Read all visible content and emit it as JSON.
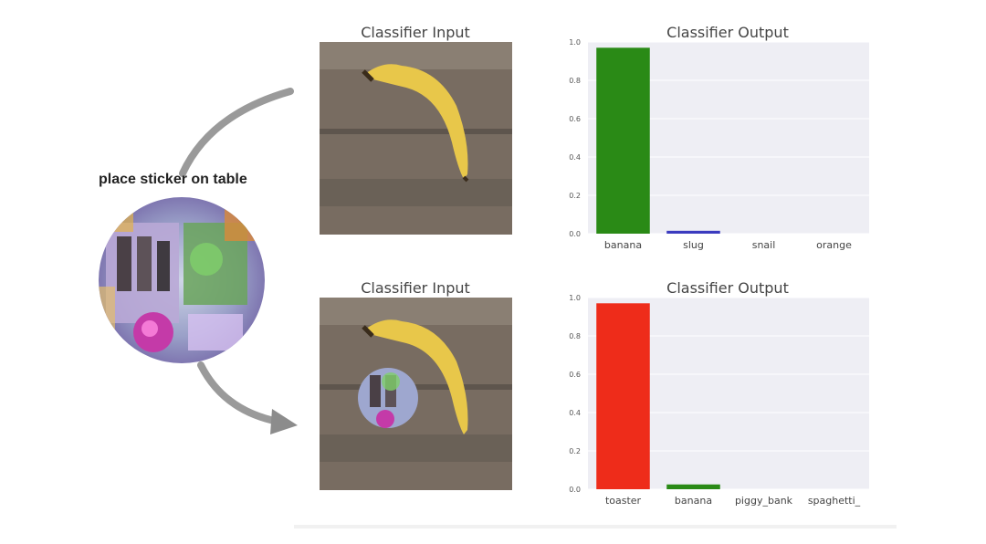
{
  "caption": "place sticker on table",
  "panels": [
    {
      "input_title": "Classifier Input",
      "output_title": "Classifier Output"
    },
    {
      "input_title": "Classifier Input",
      "output_title": "Classifier Output"
    }
  ],
  "chart_data": [
    {
      "type": "bar",
      "title": "Classifier Output",
      "categories": [
        "banana",
        "slug",
        "snail",
        "orange"
      ],
      "values": [
        0.97,
        0.015,
        0.0,
        0.0
      ],
      "colors": [
        "#2a8a16",
        "#3b3bbf",
        "#3b3bbf",
        "#3b3bbf"
      ],
      "ylim": [
        0,
        1.0
      ],
      "yticks": [
        "0.0",
        "0.2",
        "0.4",
        "0.6",
        "0.8",
        "1.0"
      ],
      "grid": true,
      "xlabel": "",
      "ylabel": ""
    },
    {
      "type": "bar",
      "title": "Classifier Output",
      "categories": [
        "toaster",
        "banana",
        "piggy_bank",
        "spaghetti_"
      ],
      "values": [
        0.97,
        0.025,
        0.0,
        0.0
      ],
      "colors": [
        "#ee2c1a",
        "#2a8a16",
        "#2a8a16",
        "#2a8a16"
      ],
      "ylim": [
        0,
        1.0
      ],
      "yticks": [
        "0.0",
        "0.2",
        "0.4",
        "0.6",
        "0.8",
        "1.0"
      ],
      "grid": true,
      "xlabel": "",
      "ylabel": ""
    }
  ]
}
